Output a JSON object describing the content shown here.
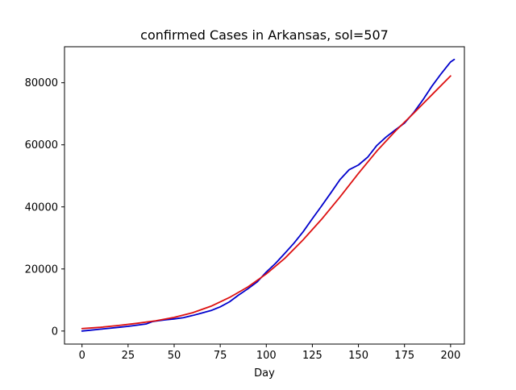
{
  "chart_data": {
    "type": "line",
    "title": "confirmed Cases in Arkansas, sol=507",
    "xlabel": "Day",
    "ylabel": "",
    "xlim": [
      -9.5,
      207.5
    ],
    "ylim": [
      -4200,
      91600
    ],
    "xticks": [
      0,
      25,
      50,
      75,
      100,
      125,
      150,
      175,
      200
    ],
    "yticks": [
      0,
      20000,
      40000,
      60000,
      80000
    ],
    "grid": false,
    "legend": "none",
    "series": [
      {
        "color": "#0000cc",
        "x": [
          0,
          5,
          10,
          15,
          20,
          25,
          30,
          35,
          38,
          40,
          45,
          50,
          55,
          60,
          65,
          70,
          75,
          80,
          85,
          90,
          95,
          100,
          105,
          110,
          115,
          120,
          125,
          130,
          135,
          140,
          145,
          150,
          155,
          160,
          165,
          170,
          175,
          180,
          185,
          190,
          195,
          200,
          202
        ],
        "y": [
          0,
          300,
          600,
          900,
          1200,
          1500,
          1900,
          2300,
          3000,
          3200,
          3600,
          3900,
          4300,
          5000,
          5800,
          6600,
          7800,
          9400,
          11600,
          13600,
          15800,
          19000,
          21800,
          25000,
          28300,
          32000,
          36200,
          40300,
          44500,
          48800,
          52000,
          53500,
          56000,
          59800,
          62500,
          64800,
          67000,
          70400,
          74500,
          79000,
          83000,
          86700,
          87500
        ]
      },
      {
        "color": "#dd1111",
        "x": [
          0,
          10,
          20,
          30,
          40,
          50,
          60,
          70,
          80,
          90,
          100,
          110,
          120,
          130,
          140,
          150,
          160,
          170,
          180,
          190,
          200
        ],
        "y": [
          800,
          1200,
          1800,
          2500,
          3300,
          4400,
          5900,
          8000,
          10800,
          14200,
          18400,
          23400,
          29400,
          36000,
          43200,
          50800,
          58000,
          64400,
          70200,
          76200,
          82200
        ]
      }
    ]
  }
}
